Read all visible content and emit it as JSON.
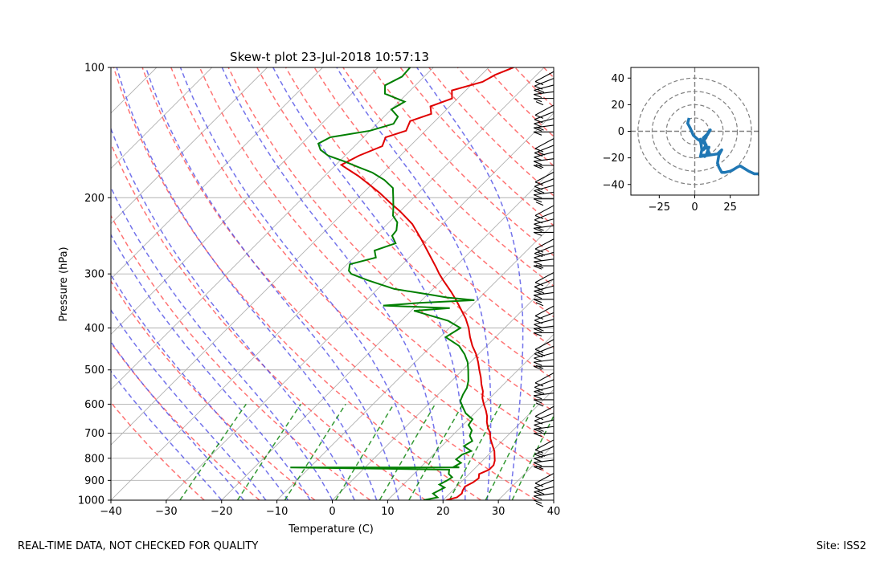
{
  "chart_data": [
    {
      "type": "line",
      "name": "skew-t",
      "title": "Skew-t plot 23-Jul-2018 10:57:13",
      "xlabel": "Temperature (C)",
      "ylabel": "Pressure (hPa)",
      "xlim": [
        -40,
        40
      ],
      "ylim": [
        1000,
        100
      ],
      "y_scale": "log",
      "x_ticks": [
        -40,
        -30,
        -20,
        -10,
        0,
        10,
        20,
        30,
        40
      ],
      "x_tick_labels": [
        "−40",
        "−30",
        "−20",
        "−10",
        "0",
        "10",
        "20",
        "30",
        "40"
      ],
      "y_ticks": [
        1000,
        900,
        800,
        700,
        600,
        500,
        400,
        300,
        200,
        100
      ],
      "y_tick_labels": [
        "1000",
        "900",
        "800",
        "700",
        "600",
        "500",
        "400",
        "300",
        "200",
        "100"
      ],
      "series": [
        {
          "name": "temperature",
          "color": "#e00000",
          "points": [
            [
              1000,
              20.6
            ],
            [
              985,
              22.0
            ],
            [
              965,
              22.2
            ],
            [
              950,
              21.8
            ],
            [
              930,
              21.5
            ],
            [
              910,
              22.2
            ],
            [
              890,
              22.5
            ],
            [
              870,
              21.8
            ],
            [
              850,
              22.8
            ],
            [
              830,
              22.8
            ],
            [
              810,
              22.2
            ],
            [
              790,
              21.3
            ],
            [
              770,
              20.4
            ],
            [
              740,
              18.6
            ],
            [
              720,
              17.4
            ],
            [
              700,
              16.4
            ],
            [
              680,
              15.0
            ],
            [
              660,
              13.8
            ],
            [
              640,
              12.8
            ],
            [
              620,
              11.5
            ],
            [
              600,
              10.0
            ],
            [
              580,
              8.6
            ],
            [
              560,
              7.5
            ],
            [
              540,
              6.0
            ],
            [
              520,
              4.6
            ],
            [
              500,
              3.0
            ],
            [
              480,
              1.4
            ],
            [
              460,
              -0.4
            ],
            [
              440,
              -2.6
            ],
            [
              420,
              -4.6
            ],
            [
              400,
              -6.5
            ],
            [
              380,
              -8.8
            ],
            [
              360,
              -11.6
            ],
            [
              345,
              -13.8
            ],
            [
              330,
              -16.2
            ],
            [
              310,
              -19.8
            ],
            [
              300,
              -21.6
            ],
            [
              290,
              -23.3
            ],
            [
              270,
              -27.0
            ],
            [
              250,
              -31.0
            ],
            [
              230,
              -35.5
            ],
            [
              215,
              -40.0
            ],
            [
              205,
              -43.5
            ],
            [
              195,
              -47.0
            ],
            [
              185,
              -51.0
            ],
            [
              178,
              -54.0
            ],
            [
              172,
              -57.0
            ],
            [
              168,
              -59.0
            ],
            [
              160,
              -57.5
            ],
            [
              152,
              -55.0
            ],
            [
              145,
              -56.0
            ],
            [
              140,
              -53.5
            ],
            [
              133,
              -54.5
            ],
            [
              128,
              -52.0
            ],
            [
              123,
              -53.5
            ],
            [
              118,
              -51.0
            ],
            [
              113,
              -52.5
            ],
            [
              108,
              -48.5
            ],
            [
              104,
              -47.5
            ],
            [
              100,
              -45.5
            ]
          ]
        },
        {
          "name": "dewpoint",
          "color": "#007f00",
          "points": [
            [
              1000,
              16.5
            ],
            [
              985,
              18.5
            ],
            [
              965,
              17.0
            ],
            [
              950,
              17.5
            ],
            [
              935,
              18.0
            ],
            [
              920,
              16.5
            ],
            [
              900,
              17.2
            ],
            [
              885,
              17.5
            ],
            [
              870,
              16.3
            ],
            [
              850,
              15.6
            ],
            [
              840,
              -13.5
            ],
            [
              840,
              17.0
            ],
            [
              835,
              16.0
            ],
            [
              820,
              16.5
            ],
            [
              805,
              15.0
            ],
            [
              785,
              15.2
            ],
            [
              770,
              16.2
            ],
            [
              750,
              14.0
            ],
            [
              730,
              14.6
            ],
            [
              710,
              13.2
            ],
            [
              690,
              12.6
            ],
            [
              670,
              11.0
            ],
            [
              650,
              10.7
            ],
            [
              630,
              8.4
            ],
            [
              610,
              6.8
            ],
            [
              590,
              5.2
            ],
            [
              570,
              4.5
            ],
            [
              550,
              4.0
            ],
            [
              530,
              3.0
            ],
            [
              500,
              1.0
            ],
            [
              480,
              -0.5
            ],
            [
              460,
              -2.5
            ],
            [
              440,
              -5.0
            ],
            [
              420,
              -9.0
            ],
            [
              400,
              -8.0
            ],
            [
              385,
              -11.5
            ],
            [
              365,
              -19.5
            ],
            [
              360,
              -13.5
            ],
            [
              355,
              -26.0
            ],
            [
              350,
              -20.0
            ],
            [
              345,
              -10.5
            ],
            [
              340,
              -16.0
            ],
            [
              335,
              -19.5
            ],
            [
              325,
              -27.0
            ],
            [
              310,
              -33.5
            ],
            [
              300,
              -37.5
            ],
            [
              295,
              -38.5
            ],
            [
              285,
              -39.5
            ],
            [
              275,
              -36.0
            ],
            [
              265,
              -37.5
            ],
            [
              255,
              -35.0
            ],
            [
              245,
              -37.0
            ],
            [
              238,
              -37.2
            ],
            [
              228,
              -38.5
            ],
            [
              220,
              -40.5
            ],
            [
              210,
              -42.0
            ],
            [
              200,
              -43.7
            ],
            [
              190,
              -45.5
            ],
            [
              182,
              -48.5
            ],
            [
              175,
              -52.0
            ],
            [
              170,
              -55.5
            ],
            [
              165,
              -59.0
            ],
            [
              160,
              -63.0
            ],
            [
              155,
              -65.5
            ],
            [
              150,
              -67.0
            ],
            [
              145,
              -66.0
            ],
            [
              140,
              -60.0
            ],
            [
              135,
              -57.0
            ],
            [
              130,
              -57.5
            ],
            [
              125,
              -60.0
            ],
            [
              120,
              -59.0
            ],
            [
              115,
              -64.0
            ],
            [
              110,
              -65.5
            ],
            [
              105,
              -64.0
            ],
            [
              100,
              -64.2
            ]
          ]
        }
      ],
      "background_lines": {
        "dry_adiabats_color": "#ff5050",
        "moist_adiabats_color": "#5050e6",
        "mixing_ratio_color": "#008000",
        "isotherms_color": "#999999"
      },
      "wind_barbs": "right edge, spanning 1000 to 100 hPa"
    },
    {
      "type": "line",
      "name": "hodograph",
      "xlim": [
        -45,
        45
      ],
      "ylim": [
        -48,
        48
      ],
      "x_ticks": [
        -25,
        0,
        25
      ],
      "x_tick_labels": [
        "−25",
        "0",
        "25"
      ],
      "y_ticks": [
        -40,
        -20,
        0,
        20,
        40
      ],
      "y_tick_labels": [
        "−40",
        "−20",
        "0",
        "20",
        "40"
      ],
      "rings": [
        10,
        20,
        30,
        40
      ],
      "color": "#1f77b4",
      "points": [
        [
          -4,
          10
        ],
        [
          -5,
          6
        ],
        [
          -3,
          2
        ],
        [
          -1,
          -3
        ],
        [
          2,
          -6
        ],
        [
          5,
          -8
        ],
        [
          8,
          -10
        ],
        [
          6,
          -14
        ],
        [
          8,
          -12
        ],
        [
          10,
          -12
        ],
        [
          8,
          -18
        ],
        [
          6,
          -18
        ],
        [
          7,
          -19
        ],
        [
          10,
          -16
        ],
        [
          7,
          -8
        ],
        [
          6,
          -5
        ],
        [
          9,
          -2
        ],
        [
          10,
          0
        ],
        [
          11,
          1
        ],
        [
          7,
          -6
        ],
        [
          4,
          -8
        ],
        [
          4,
          -6
        ],
        [
          5,
          -14
        ],
        [
          4,
          -19
        ],
        [
          10,
          -18
        ],
        [
          16,
          -17
        ],
        [
          18,
          -15
        ],
        [
          19,
          -14
        ],
        [
          17,
          -18
        ],
        [
          16,
          -24
        ],
        [
          17,
          -27
        ],
        [
          18,
          -29
        ],
        [
          19,
          -31
        ],
        [
          21,
          -31
        ],
        [
          25,
          -30
        ],
        [
          27,
          -29
        ],
        [
          30,
          -27
        ],
        [
          32,
          -26
        ],
        [
          35,
          -28
        ],
        [
          38,
          -30
        ],
        [
          42,
          -32
        ],
        [
          45,
          -32
        ],
        [
          46,
          -34
        ]
      ]
    }
  ],
  "footer": {
    "left_text": "REAL-TIME DATA, NOT CHECKED FOR QUALITY",
    "right_text": "Site: ISS2"
  }
}
